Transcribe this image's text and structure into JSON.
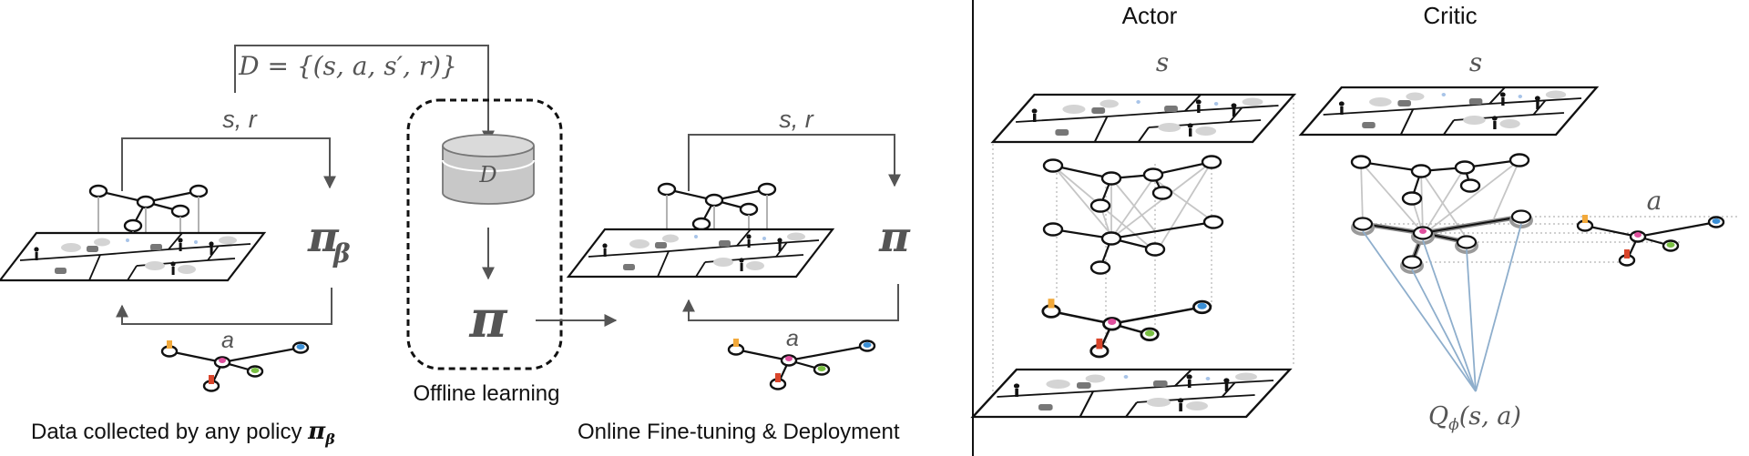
{
  "left": {
    "dataset_formula": "D = {(s, a, s′, r)}",
    "loop1_state_label": "s, r",
    "loop1_policy_symbol": "π",
    "loop1_policy_subscript": "β",
    "loop1_action_label": "a",
    "caption1_text": "Data collected by any policy ",
    "caption1_symbol": "π",
    "caption1_subscript": "β",
    "db_label": "D",
    "offline_policy_symbol": "π",
    "offline_caption": "Offline learning",
    "loop2_state_label": "s, r",
    "loop2_policy_symbol": "π",
    "loop2_action_label": "a",
    "caption2": "Online Fine-tuning & Deployment"
  },
  "right": {
    "actor_title": "Actor",
    "critic_title": "Critic",
    "actor_state_label": "s",
    "critic_state_label": "s",
    "critic_action_label": "a",
    "q_symbol": "Q",
    "q_subscript": "ϕ",
    "q_args": "(s, a)"
  },
  "colors": {
    "line": "#555555",
    "ink": "#111111",
    "db_fill": "#c8c8c8",
    "q_lines": "#8eaecc",
    "node_orange": "#f2a93b",
    "node_pink": "#e0509e",
    "node_green": "#7ac043",
    "node_blue": "#3a8fd6",
    "node_red": "#d9452b"
  }
}
